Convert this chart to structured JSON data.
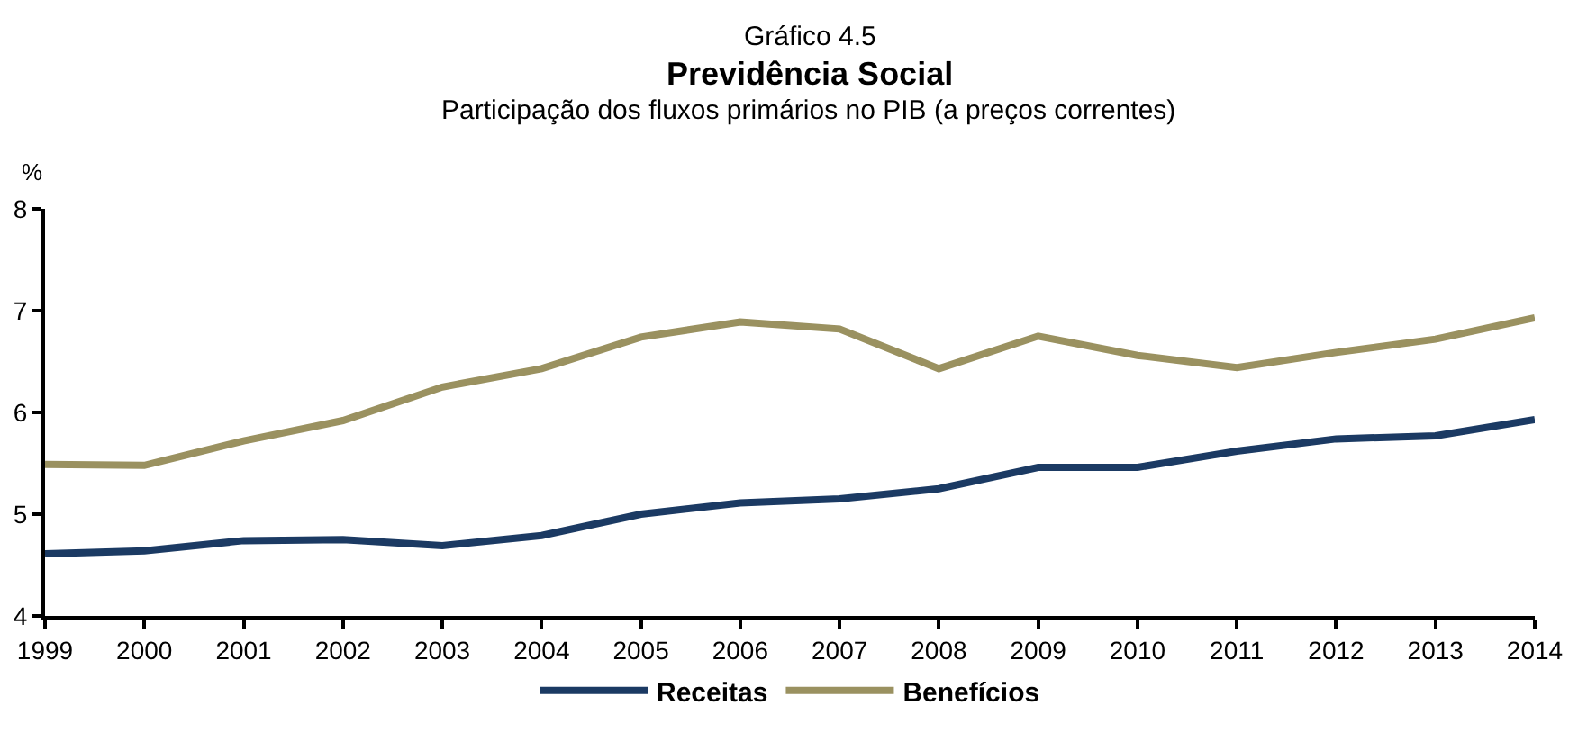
{
  "chart_data": {
    "type": "line",
    "title": "Gráfico 4.5",
    "subtitle": "Previdência Social",
    "annotations": [
      "Participação dos fluxos primários no PIB (a preços correntes)"
    ],
    "ylabel": "%",
    "x": [
      1999,
      2000,
      2001,
      2002,
      2003,
      2004,
      2005,
      2006,
      2007,
      2008,
      2009,
      2010,
      2011,
      2012,
      2013,
      2014
    ],
    "series": [
      {
        "name": "Receitas",
        "color": "#1b3a63",
        "values": [
          4.61,
          4.64,
          4.74,
          4.75,
          4.69,
          4.79,
          5.0,
          5.11,
          5.15,
          5.25,
          5.46,
          5.46,
          5.62,
          5.74,
          5.77,
          5.93
        ]
      },
      {
        "name": "Benefícios",
        "color": "#9a9160",
        "values": [
          5.49,
          5.48,
          5.72,
          5.92,
          6.25,
          6.43,
          6.74,
          6.89,
          6.82,
          6.43,
          6.75,
          6.56,
          6.44,
          6.59,
          6.72,
          6.93
        ]
      }
    ],
    "xlim": [
      1999,
      2014
    ],
    "xticks": [
      1999,
      2000,
      2001,
      2002,
      2003,
      2004,
      2005,
      2006,
      2007,
      2008,
      2009,
      2010,
      2011,
      2012,
      2013,
      2014
    ],
    "ylim": [
      4,
      8
    ],
    "yticks": [
      4,
      5,
      6,
      7,
      8
    ],
    "grid": false,
    "legend": "bottom",
    "marker": "none",
    "line_style": "solid"
  }
}
